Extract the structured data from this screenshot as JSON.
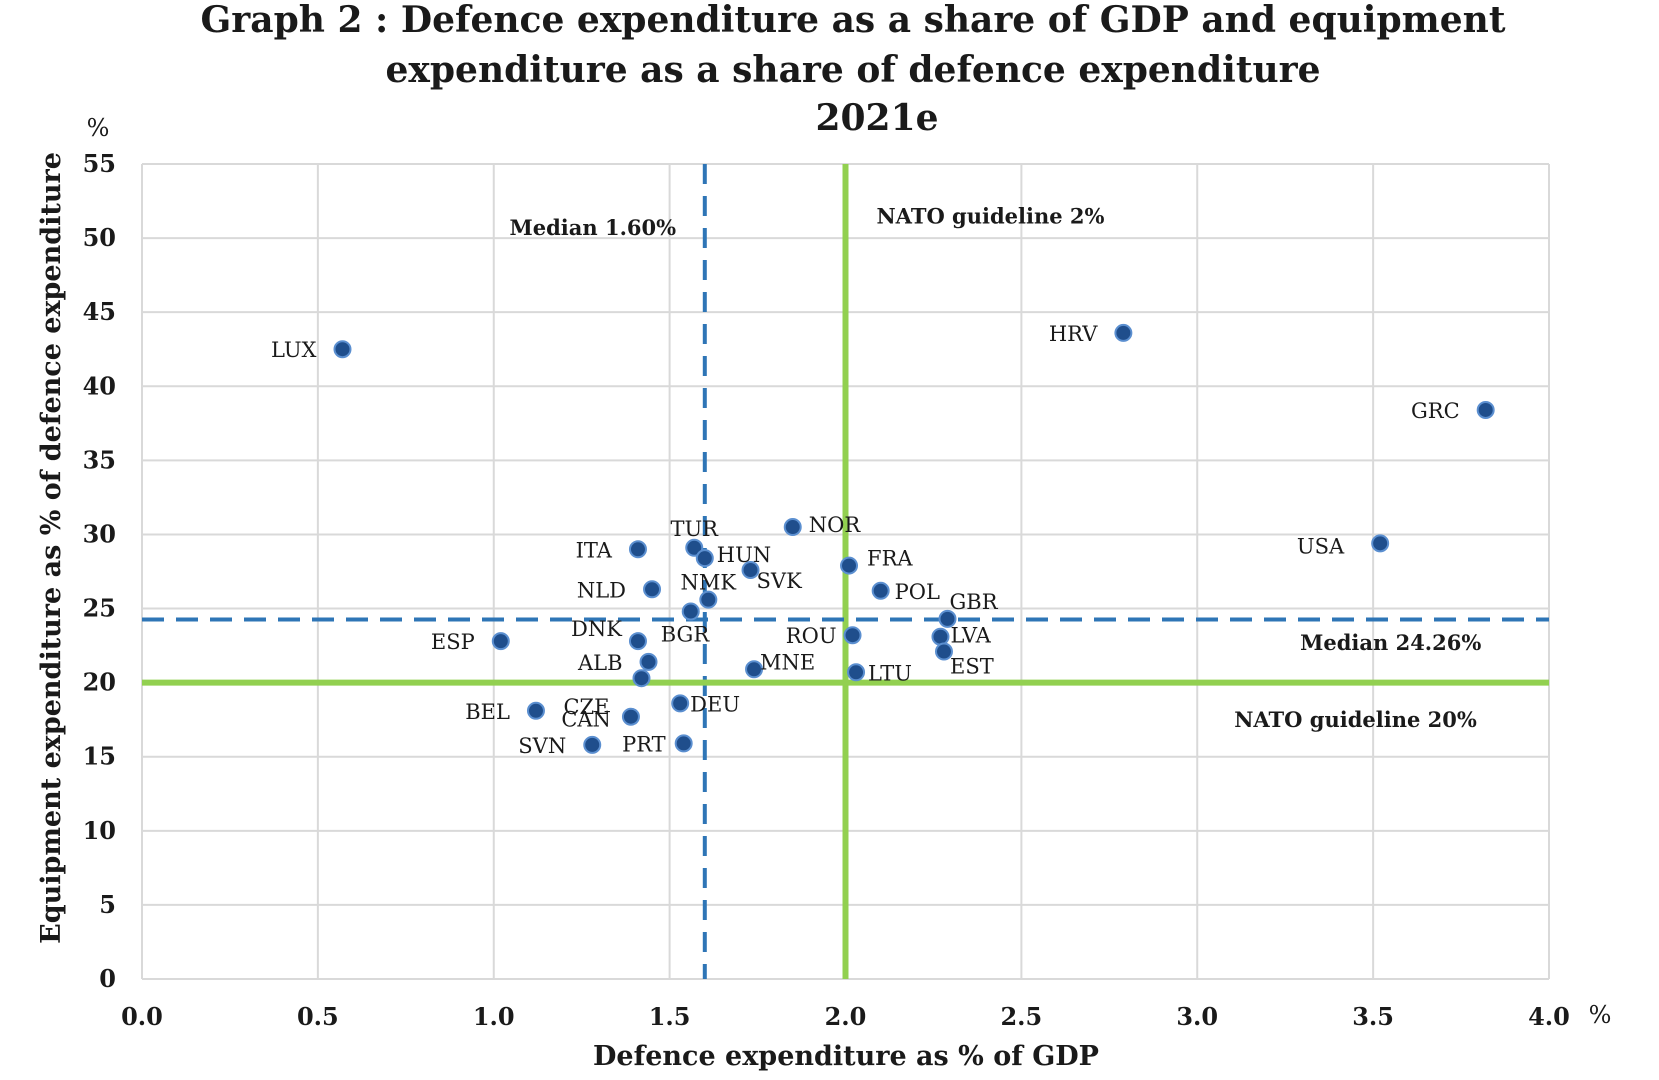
{
  "chart_data": {
    "type": "scatter",
    "title_lines": [
      "Graph 2 : Defence expenditure as a share of GDP and equipment",
      "expenditure as a share of defence expenditure",
      "2021e"
    ],
    "xlabel": "Defence expenditure as % of GDP",
    "ylabel": "Equipment expenditure as % of defence expenditure",
    "x_unit": "%",
    "y_unit": "%",
    "xlim": [
      0,
      4
    ],
    "ylim": [
      0,
      55
    ],
    "x_ticks": [
      "0.0",
      "0.5",
      "1.0",
      "1.5",
      "2.0",
      "2.5",
      "3.0",
      "3.5",
      "4.0"
    ],
    "y_ticks": [
      "0",
      "5",
      "10",
      "15",
      "20",
      "25",
      "30",
      "35",
      "40",
      "45",
      "50",
      "55"
    ],
    "grid": true,
    "marker_color": "#1f4e8c",
    "reference_lines": [
      {
        "axis": "x",
        "value": 1.6,
        "style": "dashed",
        "color": "#2e75b6",
        "label": "Median 1.60%"
      },
      {
        "axis": "x",
        "value": 2.0,
        "style": "solid",
        "color": "#92d050",
        "label": "NATO guideline 2%"
      },
      {
        "axis": "y",
        "value": 24.26,
        "style": "dashed",
        "color": "#2e75b6",
        "label": "Median 24.26%"
      },
      {
        "axis": "y",
        "value": 20,
        "style": "solid",
        "color": "#92d050",
        "label": "NATO guideline 20%"
      }
    ],
    "points": [
      {
        "label": "LUX",
        "x": 0.57,
        "y": 42.5
      },
      {
        "label": "HRV",
        "x": 2.79,
        "y": 43.6
      },
      {
        "label": "GRC",
        "x": 3.82,
        "y": 38.4
      },
      {
        "label": "USA",
        "x": 3.52,
        "y": 29.4
      },
      {
        "label": "NOR",
        "x": 1.85,
        "y": 30.5
      },
      {
        "label": "ITA",
        "x": 1.41,
        "y": 29.0
      },
      {
        "label": "TUR",
        "x": 1.57,
        "y": 29.1
      },
      {
        "label": "HUN",
        "x": 1.6,
        "y": 28.4
      },
      {
        "label": "SVK",
        "x": 1.73,
        "y": 27.6
      },
      {
        "label": "FRA",
        "x": 2.01,
        "y": 27.9
      },
      {
        "label": "NLD",
        "x": 1.45,
        "y": 26.3
      },
      {
        "label": "NMK",
        "x": 1.61,
        "y": 25.6
      },
      {
        "label": "POL",
        "x": 2.1,
        "y": 26.2
      },
      {
        "label": "GBR",
        "x": 2.29,
        "y": 24.3
      },
      {
        "label": "BGR",
        "x": 1.56,
        "y": 24.8
      },
      {
        "label": "DNK",
        "x": 1.41,
        "y": 22.8
      },
      {
        "label": "ESP",
        "x": 1.02,
        "y": 22.8
      },
      {
        "label": "ROU",
        "x": 2.02,
        "y": 23.2
      },
      {
        "label": "LVA",
        "x": 2.27,
        "y": 23.1
      },
      {
        "label": "EST",
        "x": 2.28,
        "y": 22.1
      },
      {
        "label": "ALB",
        "x": 1.44,
        "y": 21.4
      },
      {
        "label": "CZE",
        "x": 1.42,
        "y": 20.3
      },
      {
        "label": "MNE",
        "x": 1.74,
        "y": 20.9
      },
      {
        "label": "LTU",
        "x": 2.03,
        "y": 20.7
      },
      {
        "label": "BEL",
        "x": 1.12,
        "y": 18.1
      },
      {
        "label": "DEU",
        "x": 1.53,
        "y": 18.6
      },
      {
        "label": "CAN",
        "x": 1.39,
        "y": 17.7
      },
      {
        "label": "SVN",
        "x": 1.28,
        "y": 15.8
      },
      {
        "label": "PRT",
        "x": 1.54,
        "y": 15.9
      }
    ]
  }
}
